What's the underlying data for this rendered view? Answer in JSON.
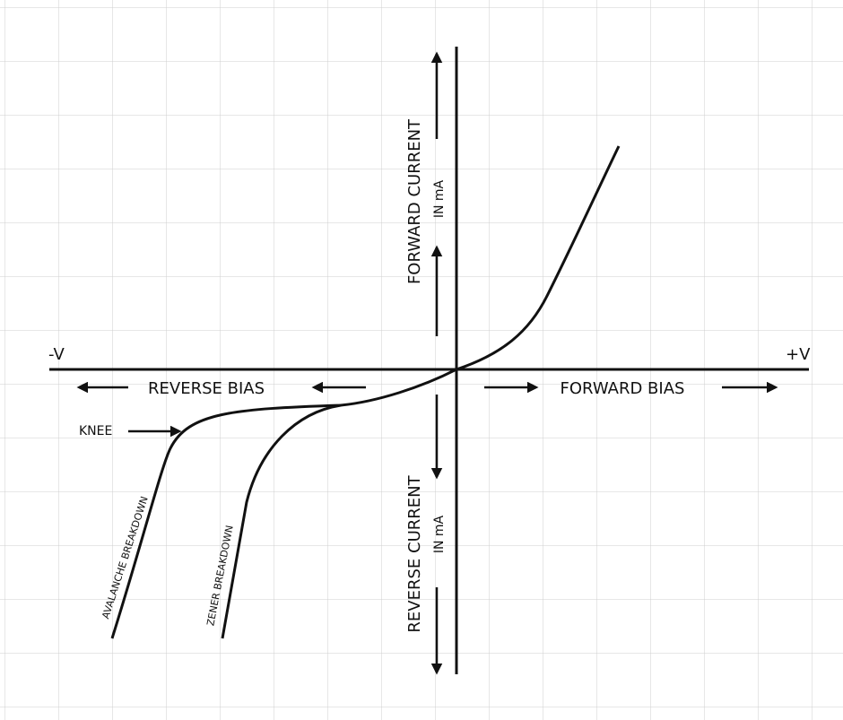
{
  "labels": {
    "neg_v": "-V",
    "pos_v": "+V",
    "reverse_bias": "REVERSE BIAS",
    "forward_bias": "FORWARD BIAS",
    "forward_current": "FORWARD CURRENT",
    "forward_unit": "IN mA",
    "reverse_current": "REVERSE CURRENT",
    "reverse_unit": "IN mA",
    "knee": "KNEE",
    "avalanche": "AVALANCHE BREAKDOWN",
    "zener": "ZENER BREAKDOWN"
  }
}
